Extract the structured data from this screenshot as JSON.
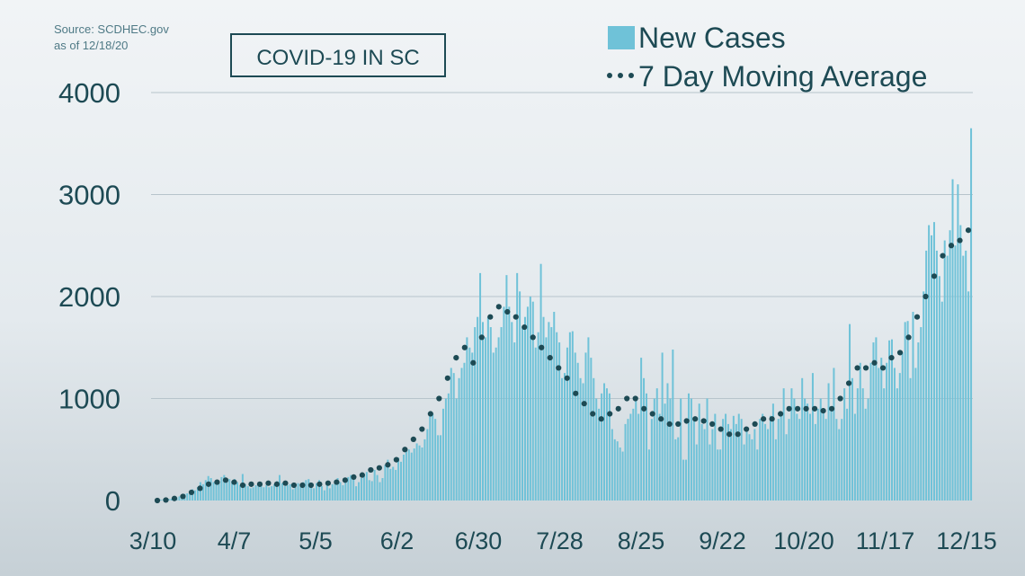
{
  "source": {
    "line1": "Source: SCDHEC.gov",
    "line2": "as of 12/18/20"
  },
  "chart_data": {
    "type": "bar",
    "title": "COVID-19 IN SC",
    "series": [
      {
        "name": "New Cases",
        "kind": "bar",
        "color": "#6fc2d8"
      },
      {
        "name": "7 Day Moving Average",
        "kind": "dotted-line",
        "color": "#1d4a54"
      }
    ],
    "legend_position": "top-right",
    "grid": true,
    "ylim": [
      0,
      4000
    ],
    "yticks": [
      "4000",
      "3000",
      "2000",
      "1000",
      "0"
    ],
    "xticks": [
      "3/10",
      "4/7",
      "5/5",
      "6/2",
      "6/30",
      "7/28",
      "8/25",
      "9/22",
      "10/20",
      "11/17",
      "12/15"
    ],
    "x_start": "3/10",
    "x_end": "12/15",
    "new_cases": [
      2,
      5,
      8,
      10,
      5,
      15,
      18,
      25,
      30,
      40,
      55,
      65,
      70,
      90,
      110,
      100,
      130,
      180,
      160,
      200,
      240,
      220,
      180,
      200,
      170,
      230,
      250,
      190,
      210,
      190,
      210,
      180,
      150,
      260,
      160,
      140,
      120,
      130,
      150,
      160,
      170,
      130,
      150,
      130,
      140,
      160,
      190,
      250,
      170,
      140,
      150,
      160,
      110,
      130,
      170,
      140,
      180,
      200,
      210,
      160,
      120,
      170,
      200,
      140,
      100,
      150,
      120,
      160,
      200,
      220,
      180,
      150,
      190,
      230,
      250,
      210,
      140,
      180,
      220,
      260,
      280,
      200,
      190,
      300,
      250,
      180,
      220,
      350,
      400,
      310,
      330,
      300,
      420,
      380,
      450,
      480,
      500,
      470,
      510,
      560,
      540,
      520,
      600,
      700,
      870,
      850,
      800,
      640,
      640,
      900,
      1000,
      1050,
      1300,
      1250,
      1000,
      1200,
      1300,
      1350,
      1600,
      1500,
      1450,
      1700,
      1800,
      2230,
      1750,
      1600,
      1800,
      1700,
      1450,
      1500,
      1600,
      1700,
      1900,
      2210,
      1900,
      1750,
      1550,
      2230,
      2050,
      1700,
      1800,
      1900,
      2000,
      1950,
      1500,
      1650,
      2320,
      1800,
      1600,
      1750,
      1700,
      1850,
      1650,
      1550,
      1200,
      1250,
      1500,
      1650,
      1660,
      1450,
      1350,
      1200,
      1150,
      1450,
      1600,
      1400,
      1200,
      1000,
      900,
      1050,
      1150,
      1100,
      1050,
      700,
      600,
      580,
      520,
      480,
      750,
      800,
      850,
      900,
      1000,
      850,
      1400,
      1200,
      1050,
      500,
      800,
      1000,
      1100,
      850,
      1450,
      950,
      1150,
      1000,
      1480,
      600,
      620,
      1000,
      400,
      400,
      1050,
      1000,
      800,
      550,
      950,
      750,
      700,
      1000,
      550,
      700,
      850,
      500,
      500,
      800,
      850,
      750,
      700,
      830,
      750,
      850,
      800,
      550,
      700,
      650,
      600,
      700,
      500,
      800,
      850,
      750,
      700,
      830,
      950,
      600,
      800,
      850,
      1100,
      650,
      800,
      1100,
      1000,
      850,
      800,
      1200,
      1000,
      950,
      850,
      1250,
      750,
      900,
      1000,
      900,
      800,
      1150,
      900,
      1300,
      800,
      700,
      800,
      1100,
      900,
      1730,
      1200,
      850,
      1100,
      1350,
      1100,
      900,
      1000,
      1350,
      1550,
      1600,
      1300,
      1400,
      1100,
      1350,
      1570,
      1580,
      1300,
      1100,
      1250,
      1450,
      1750,
      1760,
      1200,
      1850,
      1300,
      1550,
      1700,
      2050,
      2450,
      2700,
      2600,
      2730,
      2450,
      2200,
      1950,
      2550,
      2400,
      2650,
      3150,
      2500,
      3100,
      2700,
      2400,
      2450,
      2050,
      3650
    ],
    "moving_average": [
      0,
      5,
      20,
      40,
      80,
      120,
      160,
      180,
      200,
      180,
      150,
      160,
      160,
      170,
      160,
      170,
      150,
      150,
      150,
      160,
      170,
      180,
      200,
      230,
      250,
      300,
      320,
      350,
      400,
      500,
      600,
      700,
      850,
      1000,
      1200,
      1400,
      1500,
      1350,
      1600,
      1800,
      1900,
      1850,
      1800,
      1700,
      1600,
      1500,
      1400,
      1300,
      1200,
      1050,
      950,
      850,
      800,
      850,
      900,
      1000,
      1000,
      900,
      850,
      800,
      750,
      750,
      780,
      800,
      780,
      750,
      700,
      650,
      650,
      700,
      750,
      800,
      800,
      850,
      900,
      900,
      900,
      900,
      880,
      900,
      1000,
      1150,
      1300,
      1300,
      1350,
      1300,
      1400,
      1450,
      1600,
      1800,
      2000,
      2200,
      2400,
      2500,
      2550,
      2650
    ]
  }
}
